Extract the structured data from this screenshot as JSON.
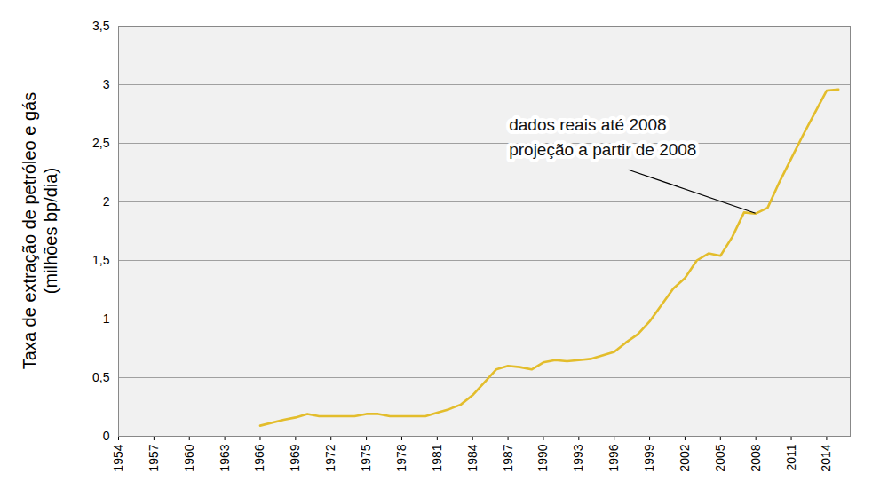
{
  "chart_data": {
    "type": "line",
    "y_label": "Taxa de extração de petróleo e gás\n(milhões bp/dia)",
    "x": [
      1966,
      1968,
      1969,
      1970,
      1971,
      1972,
      1973,
      1974,
      1975,
      1976,
      1977,
      1978,
      1979,
      1980,
      1981,
      1982,
      1983,
      1984,
      1985,
      1986,
      1987,
      1988,
      1989,
      1990,
      1991,
      1992,
      1993,
      1994,
      1995,
      1996,
      1997,
      1998,
      1999,
      2000,
      2001,
      2002,
      2003,
      2004,
      2005,
      2006,
      2007,
      2008,
      2009,
      2010,
      2011,
      2012,
      2013,
      2014,
      2015
    ],
    "values": [
      0.09,
      0.14,
      0.16,
      0.19,
      0.17,
      0.17,
      0.17,
      0.17,
      0.19,
      0.19,
      0.17,
      0.17,
      0.17,
      0.17,
      0.2,
      0.23,
      0.27,
      0.35,
      0.46,
      0.57,
      0.6,
      0.59,
      0.57,
      0.63,
      0.65,
      0.64,
      0.65,
      0.66,
      0.69,
      0.72,
      0.8,
      0.87,
      0.98,
      1.12,
      1.26,
      1.35,
      1.5,
      1.56,
      1.54,
      1.7,
      1.91,
      1.9,
      1.95,
      2.17,
      2.37,
      2.57,
      2.76,
      2.95,
      2.96
    ],
    "color": "#e3bd2c",
    "xlim": [
      1954,
      2016
    ],
    "xticks": [
      1954,
      1957,
      1960,
      1963,
      1966,
      1969,
      1972,
      1975,
      1978,
      1981,
      1984,
      1987,
      1990,
      1993,
      1996,
      1999,
      2002,
      2005,
      2008,
      2011,
      2014
    ],
    "ylim": [
      0,
      3.5
    ],
    "yticks": [
      0,
      {
        "value": 0.5,
        "label": "0,5"
      },
      1,
      {
        "value": 1.5,
        "label": "1,5"
      },
      2,
      {
        "value": 2.5,
        "label": "2,5"
      },
      3,
      {
        "value": 3.5,
        "label": "3,5"
      }
    ],
    "grid": true,
    "annotations": [
      {
        "text": "dados reais até 2008\nprojeção a partir de 2008",
        "x": 2008,
        "y": 1.9
      }
    ]
  }
}
